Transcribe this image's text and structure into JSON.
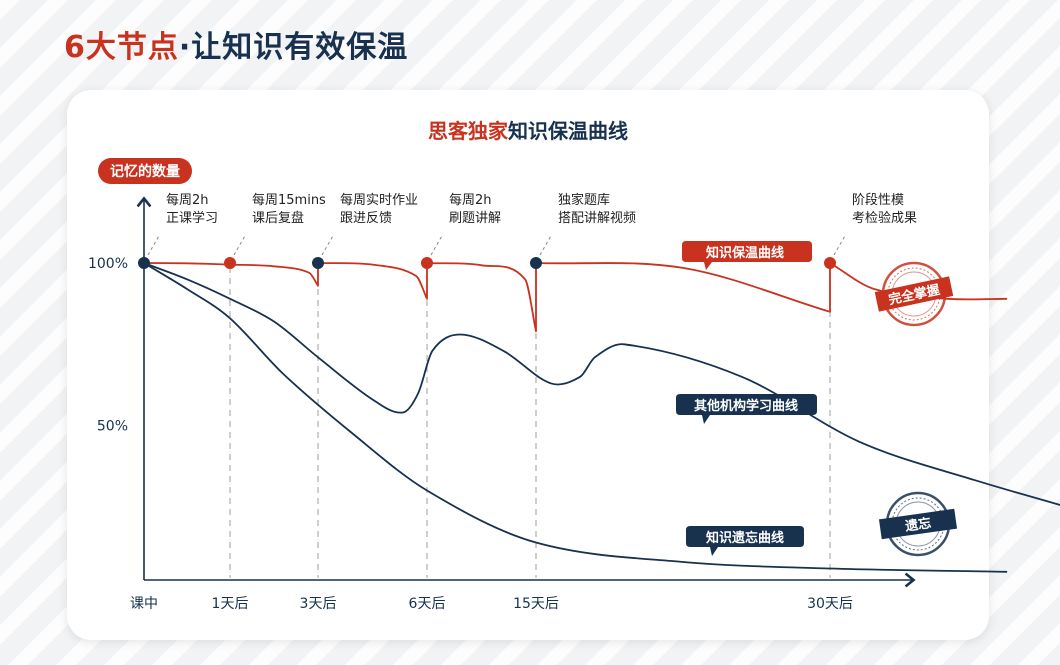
{
  "page": {
    "title_highlight": "6大节点",
    "title_rest": "·让知识有效保温"
  },
  "colors": {
    "accent_red": "#c8321e",
    "navy": "#17314f",
    "grid": "#b5b5b5"
  },
  "chart_data": {
    "type": "line",
    "title_highlight": "思客独家",
    "title_rest": "知识保温曲线",
    "ylabel": "记忆的数量",
    "y_ticks": [
      {
        "value": 100,
        "label": "100%"
      },
      {
        "value": 50,
        "label": "50%"
      }
    ],
    "ylim": [
      0,
      100
    ],
    "x_ticks": [
      {
        "pos": 0,
        "label": "课中"
      },
      {
        "pos": 1,
        "label": "1天后"
      },
      {
        "pos": 2,
        "label": "3天后"
      },
      {
        "pos": 3,
        "label": "6天后"
      },
      {
        "pos": 4,
        "label": "15天后"
      },
      {
        "pos": 5,
        "label": "30天后"
      }
    ],
    "nodes": [
      {
        "pos": 0,
        "line1": "每周2h",
        "line2": "正课学习",
        "marker_color": "#17314f"
      },
      {
        "pos": 1,
        "line1": "每周15mins",
        "line2": "课后复盘",
        "marker_color": "#c8321e"
      },
      {
        "pos": 2,
        "line1": "每周实时作业",
        "line2": "跟进反馈",
        "marker_color": "#17314f"
      },
      {
        "pos": 3,
        "line1": "每周2h",
        "line2": "刷题讲解",
        "marker_color": "#c8321e"
      },
      {
        "pos": 4,
        "line1": "独家题库",
        "line2": "搭配讲解视频",
        "marker_color": "#17314f"
      },
      {
        "pos": 5,
        "line1": "阶段性模",
        "line2": "考检验成果",
        "marker_color": "#c8321e"
      }
    ],
    "series": [
      {
        "name": "知识保温曲线",
        "color": "#c8321e",
        "points": [
          [
            0,
            100
          ],
          [
            0.5,
            99.9
          ],
          [
            1,
            99.5
          ],
          [
            1.5,
            99
          ],
          [
            1.9,
            97
          ],
          [
            2,
            93
          ],
          [
            2.0001,
            100
          ],
          [
            2.5,
            99.5
          ],
          [
            2.9,
            96
          ],
          [
            3,
            89
          ],
          [
            3.0001,
            100
          ],
          [
            3.5,
            99.3
          ],
          [
            3.9,
            95
          ],
          [
            4,
            79
          ],
          [
            4.0001,
            100
          ],
          [
            4.5,
            98.5
          ],
          [
            5,
            85
          ],
          [
            5.0001,
            100
          ],
          [
            5.15,
            92
          ],
          [
            5.4,
            89
          ],
          [
            5.6,
            89
          ]
        ]
      },
      {
        "name": "其他机构学习曲线",
        "color": "#17314f",
        "points": [
          [
            0,
            100
          ],
          [
            0.5,
            95
          ],
          [
            1,
            89
          ],
          [
            1.5,
            82
          ],
          [
            2,
            71
          ],
          [
            2.5,
            58
          ],
          [
            2.78,
            54
          ],
          [
            2.92,
            60
          ],
          [
            3.05,
            73
          ],
          [
            3.3,
            78
          ],
          [
            3.7,
            73
          ],
          [
            4.05,
            63
          ],
          [
            4.15,
            65
          ],
          [
            4.2,
            71
          ],
          [
            4.3,
            75
          ],
          [
            4.7,
            65
          ],
          [
            5.1,
            45
          ],
          [
            5.5,
            33
          ],
          [
            6.0,
            20
          ]
        ]
      },
      {
        "name": "知识遗忘曲线",
        "color": "#17314f",
        "points": [
          [
            0,
            100
          ],
          [
            0.5,
            92
          ],
          [
            1,
            83
          ],
          [
            1.6,
            66
          ],
          [
            2.3,
            48
          ],
          [
            3,
            30
          ],
          [
            4,
            14
          ],
          [
            4.5,
            8
          ],
          [
            5,
            6
          ],
          [
            5.6,
            5
          ]
        ]
      }
    ],
    "stamps": [
      {
        "label": "完全掌握",
        "color": "#c8321e"
      },
      {
        "label": "遗忘",
        "color": "#17314f"
      }
    ],
    "grid": false
  }
}
